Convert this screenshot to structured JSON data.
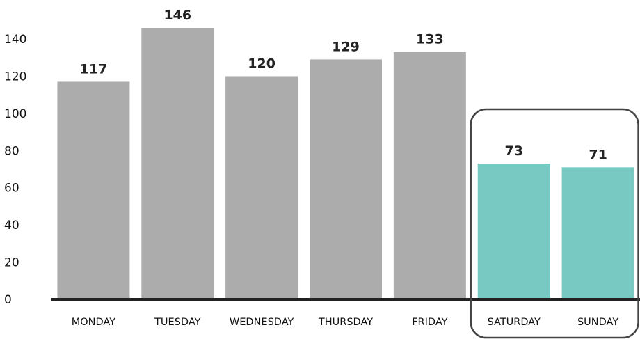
{
  "chart_data": {
    "type": "bar",
    "title": "",
    "xlabel": "",
    "ylabel": "",
    "categories": [
      "MONDAY",
      "TUESDAY",
      "WEDNESDAY",
      "THURSDAY",
      "FRIDAY",
      "SATURDAY",
      "SUNDAY"
    ],
    "values": [
      117,
      146,
      120,
      129,
      133,
      73,
      71
    ],
    "data_labels": [
      "117",
      "146",
      "120",
      "129",
      "133",
      "73",
      "71"
    ],
    "ylim": [
      0,
      146
    ],
    "yticks": [
      0,
      20,
      40,
      60,
      80,
      100,
      120,
      140
    ],
    "ytick_labels": [
      "0",
      "20",
      "40",
      "60",
      "80",
      "100",
      "120",
      "140"
    ],
    "grid": false,
    "legend": "none",
    "highlight": {
      "categories": [
        "SATURDAY",
        "SUNDAY"
      ],
      "style": "rounded outline box"
    },
    "colors": {
      "default_bar": "#acacac",
      "highlight_bar": "#79c9c3",
      "axis": "#222222",
      "highlight_box": "#444444"
    }
  }
}
